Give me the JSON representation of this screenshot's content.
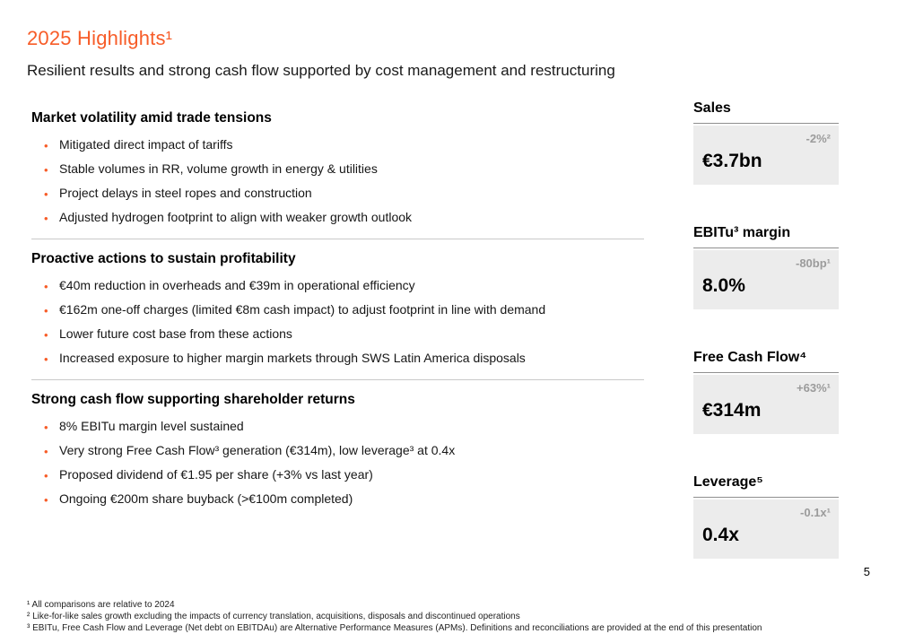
{
  "page": {
    "title": "2025 Highlights¹",
    "subtitle": "Resilient results and strong cash flow supported by cost management and restructuring",
    "page_number": "5",
    "accent_color": "#F75C28",
    "kpi_card_color": "#ECECEC",
    "kpi_delta_color": "#9B9B9B"
  },
  "sections": [
    {
      "heading": "Market volatility amid trade tensions",
      "bullets": [
        "Mitigated direct impact of tariffs",
        "Stable volumes in RR, volume growth in energy & utilities",
        "Project delays in steel ropes and construction",
        "Adjusted hydrogen footprint to align with weaker growth outlook"
      ]
    },
    {
      "heading": "Proactive actions to sustain profitability",
      "bullets": [
        "€40m reduction in overheads and €39m in operational efficiency",
        "€162m one-off charges (limited €8m cash impact) to adjust footprint in line with demand",
        "Lower future cost base from these actions",
        "Increased exposure to higher margin markets through SWS Latin America disposals"
      ]
    },
    {
      "heading": "Strong cash flow supporting shareholder returns",
      "bullets": [
        "8% EBITu margin level sustained",
        "Very strong Free Cash Flow³ generation (€314m), low leverage³ at 0.4x",
        "Proposed dividend of €1.95 per share (+3% vs last year)",
        "Ongoing €200m share buyback (>€100m completed)"
      ]
    }
  ],
  "kpis": [
    {
      "label": "Sales",
      "value": "€3.7bn",
      "delta": "-2%²"
    },
    {
      "label": "EBITu³ margin",
      "value": "8.0%",
      "delta": "-80bp¹"
    },
    {
      "label": "Free Cash Flow⁴",
      "value": "€314m",
      "delta": "+63%¹"
    },
    {
      "label": "Leverage⁵",
      "value": "0.4x",
      "delta": "-0.1x¹"
    }
  ],
  "footnotes": [
    "¹ All comparisons are relative to 2024",
    "² Like-for-like sales growth excluding the impacts of currency translation, acquisitions, disposals and discontinued operations",
    "³ EBITu, Free Cash Flow and Leverage (Net debt on EBITDAu) are Alternative Performance Measures (APMs). Definitions and reconciliations are provided at the end of this presentation"
  ]
}
